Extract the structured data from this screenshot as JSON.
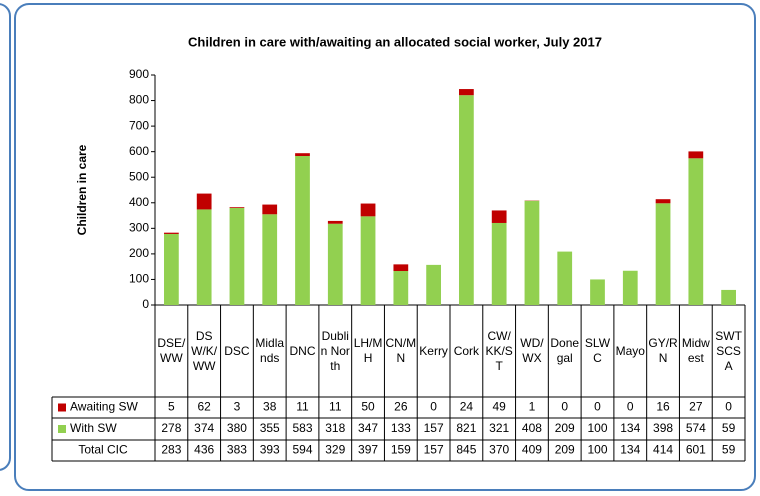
{
  "chart_data": {
    "type": "bar",
    "stacked": true,
    "title": "Children in care with/awaiting  an allocated social worker,  July 2017",
    "y_label": "Children in care",
    "categories": [
      "DSE/WW",
      "DSW/K/WW",
      "DSC",
      "Midlands",
      "DNC",
      "Dublin North",
      "LH/MH",
      "CN/MN",
      "Kerry",
      "Cork",
      "CW/KK/ST",
      "WD/WX",
      "Donegal",
      "SLWC",
      "Mayo",
      "GY/RN",
      "Midwest",
      "SWTSCSA"
    ],
    "series": [
      {
        "name": "Awaiting SW",
        "color": "#c00000",
        "values": [
          5,
          62,
          3,
          38,
          11,
          11,
          50,
          26,
          0,
          24,
          49,
          1,
          0,
          0,
          0,
          16,
          27,
          0
        ]
      },
      {
        "name": "With SW",
        "color": "#92d050",
        "values": [
          278,
          374,
          380,
          355,
          583,
          318,
          347,
          133,
          157,
          821,
          321,
          408,
          209,
          100,
          134,
          398,
          574,
          59
        ]
      }
    ],
    "total": {
      "name": "Total CIC",
      "values": [
        283,
        436,
        383,
        393,
        594,
        329,
        397,
        159,
        157,
        845,
        370,
        409,
        209,
        100,
        134,
        414,
        601,
        59
      ]
    },
    "ylim": [
      0,
      900
    ],
    "yticks": [
      0,
      100,
      200,
      300,
      400,
      500,
      600,
      700,
      800,
      900
    ]
  }
}
